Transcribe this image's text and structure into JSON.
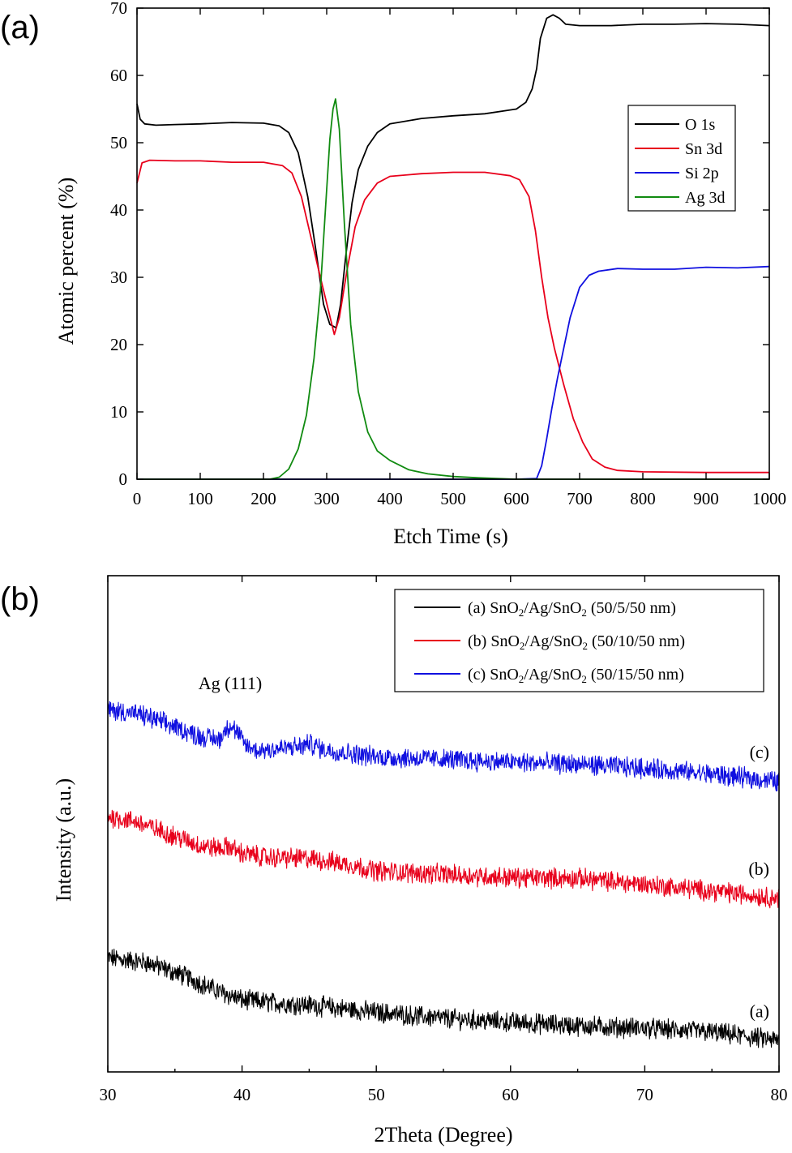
{
  "chart_data": [
    {
      "panel": "(a)",
      "type": "line",
      "title": "",
      "xlabel": "Etch Time (s)",
      "ylabel": "Atomic percent (%)",
      "xlim": [
        0,
        1000
      ],
      "ylim": [
        0,
        70
      ],
      "x_ticks": [
        0,
        100,
        200,
        300,
        400,
        500,
        600,
        700,
        800,
        900,
        1000
      ],
      "y_ticks": [
        0,
        10,
        20,
        30,
        40,
        50,
        60,
        70
      ],
      "legend_position": "right",
      "series": [
        {
          "name": "O 1s",
          "color": "#000000",
          "points": [
            [
              0,
              55.8
            ],
            [
              5,
              53.5
            ],
            [
              12,
              52.8
            ],
            [
              30,
              52.6
            ],
            [
              60,
              52.7
            ],
            [
              100,
              52.8
            ],
            [
              150,
              53.0
            ],
            [
              200,
              52.9
            ],
            [
              225,
              52.5
            ],
            [
              240,
              51.5
            ],
            [
              255,
              48.5
            ],
            [
              270,
              42.0
            ],
            [
              283,
              34.0
            ],
            [
              295,
              26.0
            ],
            [
              305,
              23.0
            ],
            [
              315,
              22.5
            ],
            [
              322,
              26.0
            ],
            [
              330,
              33.0
            ],
            [
              340,
              41.0
            ],
            [
              350,
              46.0
            ],
            [
              365,
              49.5
            ],
            [
              380,
              51.5
            ],
            [
              400,
              52.8
            ],
            [
              450,
              53.6
            ],
            [
              500,
              54.0
            ],
            [
              550,
              54.3
            ],
            [
              600,
              55.0
            ],
            [
              615,
              56.0
            ],
            [
              625,
              58.0
            ],
            [
              632,
              61.0
            ],
            [
              638,
              65.5
            ],
            [
              648,
              68.5
            ],
            [
              658,
              69.0
            ],
            [
              668,
              68.5
            ],
            [
              678,
              67.6
            ],
            [
              700,
              67.4
            ],
            [
              750,
              67.4
            ],
            [
              800,
              67.6
            ],
            [
              850,
              67.6
            ],
            [
              900,
              67.7
            ],
            [
              950,
              67.6
            ],
            [
              1000,
              67.4
            ]
          ]
        },
        {
          "name": "Sn 3d",
          "color": "#e8001b",
          "points": [
            [
              0,
              44.0
            ],
            [
              8,
              47.0
            ],
            [
              20,
              47.4
            ],
            [
              60,
              47.3
            ],
            [
              100,
              47.3
            ],
            [
              150,
              47.1
            ],
            [
              200,
              47.1
            ],
            [
              230,
              46.6
            ],
            [
              245,
              45.5
            ],
            [
              260,
              42.0
            ],
            [
              275,
              36.0
            ],
            [
              290,
              30.0
            ],
            [
              303,
              25.0
            ],
            [
              312,
              21.5
            ],
            [
              320,
              24.0
            ],
            [
              332,
              31.0
            ],
            [
              345,
              37.5
            ],
            [
              360,
              41.5
            ],
            [
              380,
              44.0
            ],
            [
              400,
              45.0
            ],
            [
              450,
              45.4
            ],
            [
              500,
              45.6
            ],
            [
              550,
              45.6
            ],
            [
              590,
              45.1
            ],
            [
              605,
              44.5
            ],
            [
              620,
              42.0
            ],
            [
              630,
              37.0
            ],
            [
              640,
              30.0
            ],
            [
              650,
              24.0
            ],
            [
              660,
              19.5
            ],
            [
              675,
              14.0
            ],
            [
              690,
              9.0
            ],
            [
              705,
              5.5
            ],
            [
              720,
              3.0
            ],
            [
              740,
              1.8
            ],
            [
              760,
              1.3
            ],
            [
              800,
              1.1
            ],
            [
              900,
              1.0
            ],
            [
              1000,
              1.0
            ]
          ]
        },
        {
          "name": "Si 2p",
          "color": "#1010e0",
          "points": [
            [
              0,
              0
            ],
            [
              600,
              0
            ],
            [
              632,
              0.1
            ],
            [
              640,
              2.0
            ],
            [
              648,
              6.0
            ],
            [
              656,
              10.5
            ],
            [
              665,
              15.0
            ],
            [
              675,
              19.5
            ],
            [
              685,
              24.0
            ],
            [
              700,
              28.5
            ],
            [
              715,
              30.3
            ],
            [
              730,
              30.9
            ],
            [
              760,
              31.3
            ],
            [
              800,
              31.2
            ],
            [
              850,
              31.2
            ],
            [
              900,
              31.5
            ],
            [
              950,
              31.4
            ],
            [
              1000,
              31.6
            ]
          ]
        },
        {
          "name": "Ag 3d",
          "color": "#118b11",
          "points": [
            [
              0,
              0
            ],
            [
              210,
              0
            ],
            [
              225,
              0.3
            ],
            [
              240,
              1.5
            ],
            [
              255,
              4.5
            ],
            [
              268,
              9.5
            ],
            [
              280,
              18.0
            ],
            [
              290,
              28.0
            ],
            [
              298,
              40.0
            ],
            [
              305,
              50.5
            ],
            [
              310,
              55.0
            ],
            [
              314,
              56.5
            ],
            [
              320,
              52.0
            ],
            [
              328,
              38.0
            ],
            [
              338,
              23.0
            ],
            [
              350,
              13.0
            ],
            [
              365,
              7.0
            ],
            [
              380,
              4.2
            ],
            [
              400,
              2.8
            ],
            [
              430,
              1.4
            ],
            [
              460,
              0.8
            ],
            [
              500,
              0.4
            ],
            [
              540,
              0.2
            ],
            [
              600,
              0
            ],
            [
              1000,
              0
            ]
          ]
        }
      ]
    },
    {
      "panel": "(b)",
      "type": "line",
      "title": "",
      "xlabel": "2Theta (Degree)",
      "ylabel": "Intensity (a.u.)",
      "xlim": [
        30,
        80
      ],
      "ylim": [
        0,
        1
      ],
      "y_tick_labels": false,
      "x_ticks": [
        30,
        40,
        50,
        60,
        70,
        80
      ],
      "legend_position": "top-right",
      "annotations": [
        {
          "text": "Ag (111)",
          "x": 39.1
        }
      ],
      "series": [
        {
          "name": "(a) SnO2/Ag/SnO2 (50/5/50 nm)",
          "legend": {
            "pre": "(a) SnO",
            "mid": "/Ag/SnO",
            "post": " (50/5/50 nm)",
            "sub": "2"
          },
          "curve_label": "(a)",
          "color": "#000000",
          "points": [
            [
              30,
              0.23
            ],
            [
              33,
              0.22
            ],
            [
              36,
              0.19
            ],
            [
              38,
              0.165
            ],
            [
              40,
              0.145
            ],
            [
              42,
              0.14
            ],
            [
              45,
              0.135
            ],
            [
              50,
              0.12
            ],
            [
              55,
              0.108
            ],
            [
              60,
              0.1
            ],
            [
              65,
              0.093
            ],
            [
              70,
              0.088
            ],
            [
              75,
              0.08
            ],
            [
              80,
              0.063
            ]
          ]
        },
        {
          "name": "(b) SnO2/Ag/SnO2 (50/10/50 nm)",
          "legend": {
            "pre": "(b) SnO",
            "mid": "/Ag/SnO",
            "post": " (50/10/50 nm)",
            "sub": "2"
          },
          "curve_label": "(b)",
          "color": "#e8001b",
          "points": [
            [
              30,
              0.515
            ],
            [
              32,
              0.505
            ],
            [
              34,
              0.485
            ],
            [
              35.5,
              0.47
            ],
            [
              37,
              0.455
            ],
            [
              38.5,
              0.45
            ],
            [
              39,
              0.455
            ],
            [
              40,
              0.44
            ],
            [
              42,
              0.432
            ],
            [
              45,
              0.43
            ],
            [
              48,
              0.418
            ],
            [
              50,
              0.405
            ],
            [
              55,
              0.398
            ],
            [
              60,
              0.392
            ],
            [
              65,
              0.39
            ],
            [
              70,
              0.378
            ],
            [
              75,
              0.365
            ],
            [
              80,
              0.35
            ]
          ]
        },
        {
          "name": "(c) SnO2/Ag/SnO2 (50/15/50 nm)",
          "legend": {
            "pre": "(c) SnO",
            "mid": "/Ag/SnO",
            "post": " (50/15/50 nm)",
            "sub": "2"
          },
          "curve_label": "(c)",
          "color": "#1010e0",
          "points": [
            [
              30,
              0.73
            ],
            [
              31.5,
              0.725
            ],
            [
              33,
              0.715
            ],
            [
              35,
              0.695
            ],
            [
              37,
              0.675
            ],
            [
              38.3,
              0.67
            ],
            [
              38.8,
              0.69
            ],
            [
              39.1,
              0.7
            ],
            [
              39.6,
              0.685
            ],
            [
              40.2,
              0.66
            ],
            [
              41,
              0.648
            ],
            [
              43,
              0.652
            ],
            [
              44.5,
              0.656
            ],
            [
              45,
              0.662
            ],
            [
              46,
              0.65
            ],
            [
              48,
              0.642
            ],
            [
              50,
              0.635
            ],
            [
              55,
              0.63
            ],
            [
              60,
              0.624
            ],
            [
              65,
              0.62
            ],
            [
              70,
              0.612
            ],
            [
              75,
              0.6
            ],
            [
              80,
              0.585
            ]
          ]
        }
      ]
    }
  ]
}
